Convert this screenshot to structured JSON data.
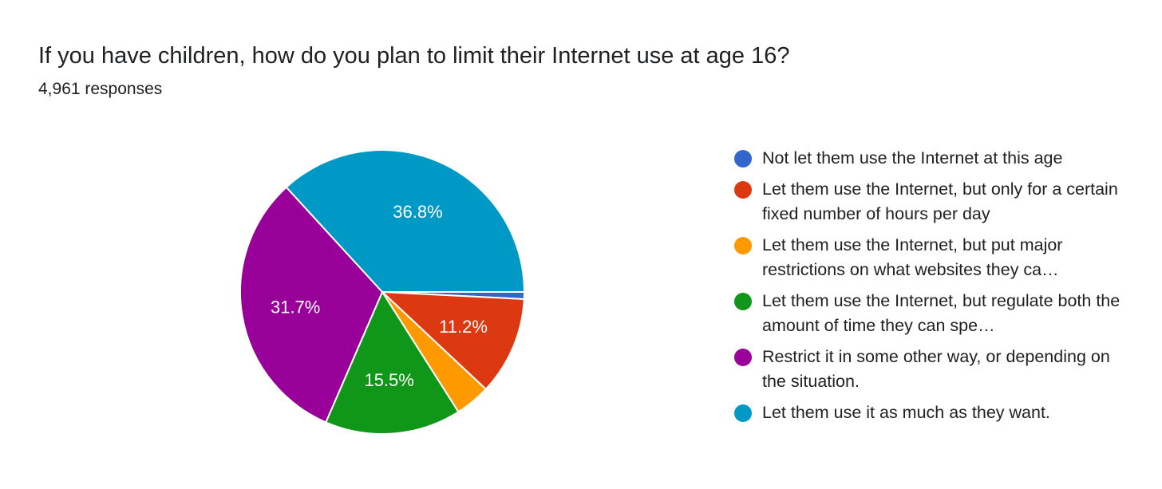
{
  "header": {
    "title": "If you have children, how do you plan to limit their Internet use at age 16?",
    "subtitle": "4,961 responses"
  },
  "chart_data": {
    "type": "pie",
    "title": "If you have children, how do you plan to limit their Internet use at age 16?",
    "slices": [
      {
        "label": "Not let them use the Internet at this age",
        "legend_text": "Not let them use the Internet at this age",
        "value": 0.8,
        "color": "#3366cc",
        "data_label": ""
      },
      {
        "label": "Let them use the Internet, but only for a certain fixed number of hours per day",
        "legend_text": "Let them use the Internet, but only for a certain fixed number of hours per day",
        "value": 11.2,
        "color": "#dc3912",
        "data_label": "11.2%"
      },
      {
        "label": "Let them use the Internet, but put major restrictions on what websites they ca…",
        "legend_text": "Let them use the Internet, but put major restrictions on what websites they ca…",
        "value": 4.0,
        "color": "#ff9900",
        "data_label": ""
      },
      {
        "label": "Let them use the Internet, but regulate both the amount of time they can spe…",
        "legend_text": "Let them use the Internet, but regulate both the amount of time they can spe…",
        "value": 15.5,
        "color": "#109618",
        "data_label": "15.5%"
      },
      {
        "label": "Restrict it in some other way, or depending on the situation.",
        "legend_text": "Restrict it in some other way, or depending on the situation.",
        "value": 31.7,
        "color": "#990099",
        "data_label": "31.7%"
      },
      {
        "label": "Let them use it as much as they want.",
        "legend_text": "Let them use it as much as they want.",
        "value": 36.8,
        "color": "#0099c6",
        "data_label": "36.8%"
      }
    ],
    "legend_position": "right"
  }
}
